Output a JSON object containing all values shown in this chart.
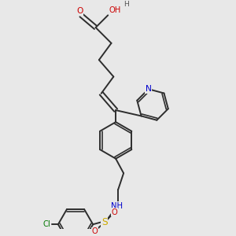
{
  "bg_color": "#e8e8e8",
  "bond_color": "#2d2d2d",
  "atom_colors": {
    "O": "#cc0000",
    "N": "#0000cc",
    "S": "#ccaa00",
    "Cl": "#007700",
    "H": "#555555",
    "C": "#2d2d2d"
  },
  "figsize": [
    3.0,
    3.0
  ],
  "dpi": 100,
  "xlim": [
    0,
    10
  ],
  "ylim": [
    0,
    10
  ]
}
